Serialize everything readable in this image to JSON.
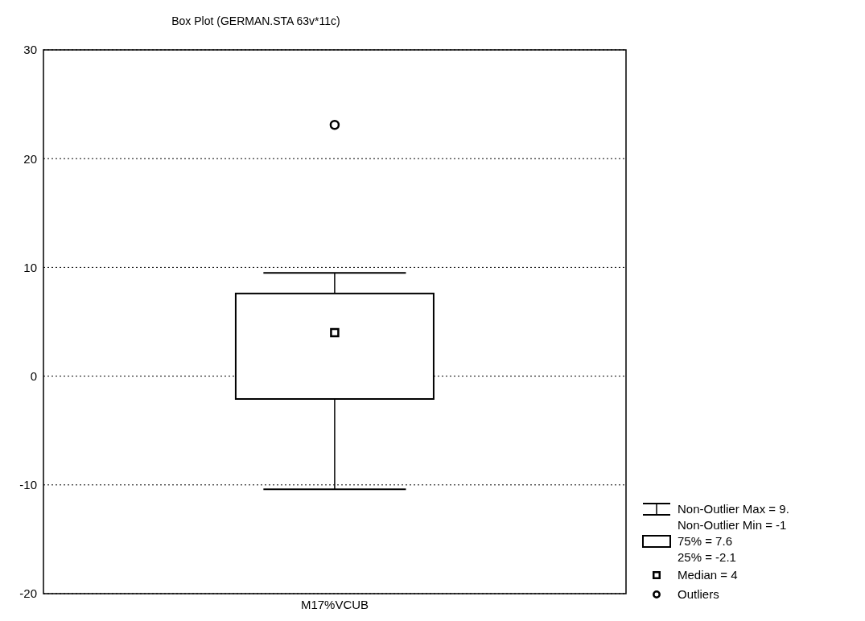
{
  "chart_data": {
    "type": "box",
    "title": "Box Plot (GERMAN.STA 63v*11c)",
    "categories": [
      "M17%VCUB"
    ],
    "boxes": [
      {
        "low": -10.4,
        "q1": -2.1,
        "median": 4,
        "q3": 7.6,
        "high": 9.5,
        "outliers": [
          23.1
        ]
      }
    ],
    "color": "#000000",
    "ylim": [
      -20,
      30
    ],
    "yticks": [
      -20,
      -10,
      0,
      10,
      20,
      30
    ],
    "grid": "y",
    "annotations": [
      "Non-Outlier Max = 9.",
      "Non-Outlier Min = -1",
      "75% = 7.6",
      "25% = -2.1",
      "Median = 4",
      "Outliers"
    ]
  }
}
